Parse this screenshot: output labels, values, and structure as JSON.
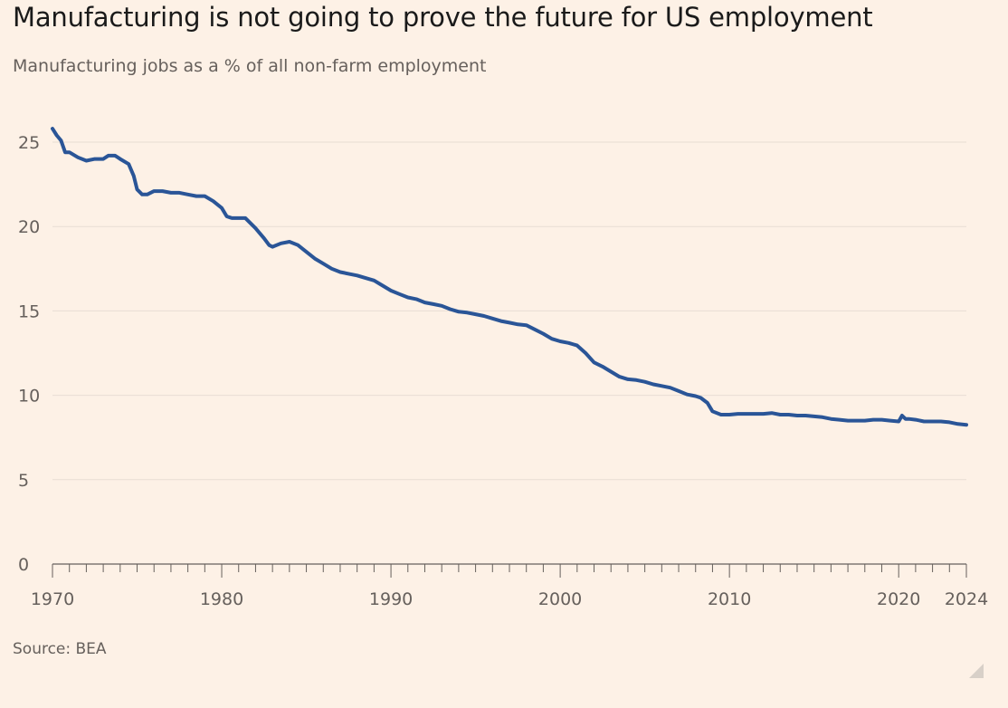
{
  "title": "Manufacturing is not going to prove the future for US employment",
  "subtitle": "Manufacturing jobs as a % of all non-farm employment",
  "source": "Source: BEA",
  "colors": {
    "background": "#fdf1e6",
    "line": "#2a5597",
    "grid": "#e8ddd3",
    "axis": "#66605c"
  },
  "chart_data": {
    "type": "line",
    "title": "Manufacturing is not going to prove the future for US employment",
    "subtitle": "Manufacturing jobs as a % of all non-farm employment",
    "xlim": [
      1970,
      2024
    ],
    "ylim": [
      0,
      25
    ],
    "y_ticks": [
      0,
      5,
      10,
      15,
      20,
      25
    ],
    "x_tick_labels": [
      1970,
      1980,
      1990,
      2000,
      2010,
      2020,
      2024
    ],
    "x_minor_ticks_every": 1,
    "grid": "horizontal",
    "legend": "none",
    "series": [
      {
        "color": "#2a5597",
        "x": [
          1970,
          1970.25,
          1970.5,
          1970.75,
          1971,
          1971.5,
          1972,
          1972.5,
          1973,
          1973.3,
          1973.7,
          1974,
          1974.5,
          1974.8,
          1975,
          1975.3,
          1975.6,
          1976,
          1976.5,
          1977,
          1977.5,
          1978,
          1978.5,
          1979,
          1979.5,
          1980,
          1980.3,
          1980.6,
          1981,
          1981.4,
          1982,
          1982.5,
          1982.8,
          1983,
          1983.5,
          1984,
          1984.5,
          1985,
          1985.5,
          1986,
          1986.5,
          1987,
          1987.5,
          1988,
          1988.5,
          1989,
          1989.5,
          1990,
          1990.5,
          1991,
          1991.5,
          1992,
          1992.5,
          1993,
          1993.5,
          1994,
          1994.5,
          1995,
          1995.5,
          1996,
          1996.5,
          1997,
          1997.5,
          1998,
          1998.5,
          1999,
          1999.5,
          2000,
          2000.5,
          2001,
          2001.5,
          2002,
          2002.5,
          2003,
          2003.5,
          2004,
          2004.5,
          2005,
          2005.5,
          2006,
          2006.5,
          2007,
          2007.5,
          2008,
          2008.3,
          2008.7,
          2009,
          2009.5,
          2010,
          2010.5,
          2011,
          2011.5,
          2012,
          2012.5,
          2013,
          2013.5,
          2014,
          2014.5,
          2015,
          2015.5,
          2016,
          2016.5,
          2017,
          2017.5,
          2018,
          2018.5,
          2019,
          2019.5,
          2020,
          2020.2,
          2020.4,
          2020.6,
          2021,
          2021.5,
          2022,
          2022.5,
          2023,
          2023.5,
          2024
        ],
        "values": [
          25.8,
          25.4,
          25.1,
          24.4,
          24.4,
          24.1,
          23.9,
          24.0,
          24.0,
          24.2,
          24.2,
          24.0,
          23.7,
          23.0,
          22.2,
          21.9,
          21.9,
          22.1,
          22.1,
          22.0,
          22.0,
          21.9,
          21.8,
          21.8,
          21.5,
          21.1,
          20.6,
          20.5,
          20.5,
          20.5,
          19.9,
          19.3,
          18.9,
          18.8,
          19.0,
          19.1,
          18.9,
          18.5,
          18.1,
          17.8,
          17.5,
          17.3,
          17.2,
          17.1,
          16.95,
          16.8,
          16.5,
          16.2,
          16.0,
          15.8,
          15.7,
          15.5,
          15.4,
          15.3,
          15.1,
          14.95,
          14.9,
          14.8,
          14.7,
          14.55,
          14.4,
          14.3,
          14.2,
          14.15,
          13.9,
          13.65,
          13.35,
          13.2,
          13.1,
          12.95,
          12.5,
          11.95,
          11.7,
          11.4,
          11.1,
          10.95,
          10.9,
          10.8,
          10.65,
          10.55,
          10.45,
          10.25,
          10.05,
          9.95,
          9.85,
          9.55,
          9.05,
          8.85,
          8.85,
          8.9,
          8.9,
          8.9,
          8.9,
          8.95,
          8.85,
          8.85,
          8.8,
          8.8,
          8.75,
          8.7,
          8.6,
          8.55,
          8.5,
          8.5,
          8.5,
          8.55,
          8.55,
          8.5,
          8.45,
          8.8,
          8.6,
          8.6,
          8.55,
          8.45,
          8.45,
          8.45,
          8.4,
          8.3,
          8.25
        ]
      }
    ]
  }
}
